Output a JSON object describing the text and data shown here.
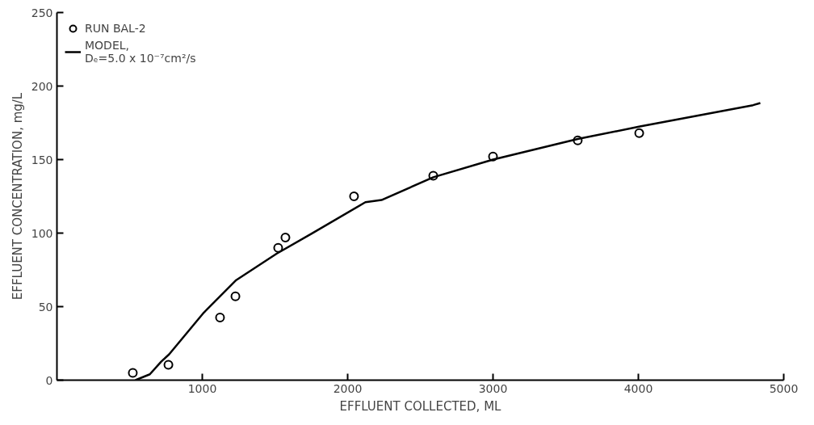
{
  "chart_data": {
    "type": "line",
    "xlabel": "EFFLUENT COLLECTED, ML",
    "ylabel": "EFFLUENT CONCENTRATION, mg/L",
    "xlim": [
      0,
      5000
    ],
    "ylim": [
      0,
      250
    ],
    "xticks": [
      1000,
      2000,
      3000,
      4000,
      5000
    ],
    "yticks": [
      0,
      50,
      100,
      150,
      200,
      250
    ],
    "grid": false,
    "legend": "top left",
    "series": [
      {
        "name": "RUN BAL-2",
        "color": "#000000",
        "type": "scatter",
        "marker": "circle",
        "x": [
          522,
          767,
          1122,
          1228,
          1522,
          1572,
          2044,
          2589,
          3000,
          3583,
          4006
        ],
        "values": [
          5,
          10.5,
          42.6,
          57,
          90,
          97,
          125,
          139,
          152,
          163,
          168
        ]
      },
      {
        "name": "MODEL,\nDₑ=5.0 x 10⁻⁷cm²/s",
        "color": "#000000",
        "line_style": "solid",
        "x": [
          540,
          639,
          717,
          772,
          1011,
          1233,
          1511,
          1750,
          2122,
          2233,
          2589,
          3000,
          3583,
          4011,
          4789,
          4839
        ],
        "values": [
          0,
          4,
          12.6,
          17.6,
          46,
          68,
          86,
          99.5,
          121,
          122.5,
          138,
          150,
          164,
          172.5,
          187,
          188.5
        ]
      }
    ]
  }
}
